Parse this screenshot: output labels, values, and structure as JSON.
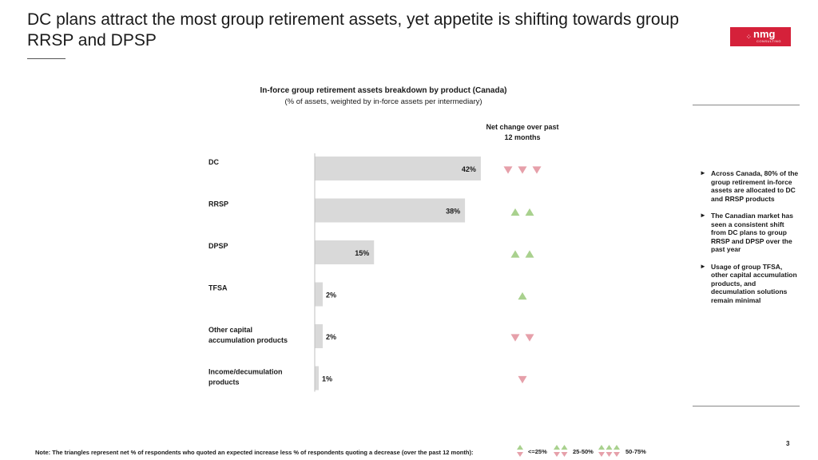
{
  "slide": {
    "title": "DC plans attract the most group retirement assets, yet appetite is shifting towards group RRSP and DPSP",
    "page_number": "3"
  },
  "logo": {
    "text": "nmg",
    "subtext": "CONSULTING"
  },
  "chart_data": {
    "type": "bar",
    "orientation": "horizontal",
    "title": "In-force group retirement assets breakdown by product (Canada)",
    "subtitle": "(% of assets, weighted by in-force assets per intermediary)",
    "categories": [
      "DC",
      "RRSP",
      "DPSP",
      "TFSA",
      "Other capital accumulation products",
      "Income/decumulation products"
    ],
    "values": [
      42,
      38,
      15,
      2,
      2,
      1
    ],
    "value_labels": [
      "42%",
      "38%",
      "15%",
      "2%",
      "2%",
      "1%"
    ],
    "unit": "%",
    "xlim": [
      0,
      100
    ],
    "bar_color": "#d9d9d9",
    "net_change_header": "Net change over past 12 months",
    "net_change": [
      {
        "direction": "down",
        "count": 3
      },
      {
        "direction": "up",
        "count": 2
      },
      {
        "direction": "up",
        "count": 2
      },
      {
        "direction": "up",
        "count": 1
      },
      {
        "direction": "down",
        "count": 2
      },
      {
        "direction": "down",
        "count": 1
      }
    ],
    "up_color": "#a9d18e",
    "down_color": "#e6a0aa"
  },
  "sidebar": {
    "bullets": [
      "Across Canada, 80% of the group retirement in-force assets are allocated to DC and RRSP products",
      "The Canadian market has seen a consistent shift from DC plans to group RRSP and DPSP over the past year",
      "Usage of group TFSA, other capital accumulation products, and decumulation solutions remain minimal"
    ],
    "bullet_marker": "►"
  },
  "footer": {
    "note": "Note: The triangles represent net % of respondents who quoted an expected increase less % of respondents quoting a decrease (over the past 12 month):",
    "legend": [
      {
        "label": "<=25%",
        "count": 1
      },
      {
        "label": "25-50%",
        "count": 2
      },
      {
        "label": "50-75%",
        "count": 3
      }
    ]
  }
}
